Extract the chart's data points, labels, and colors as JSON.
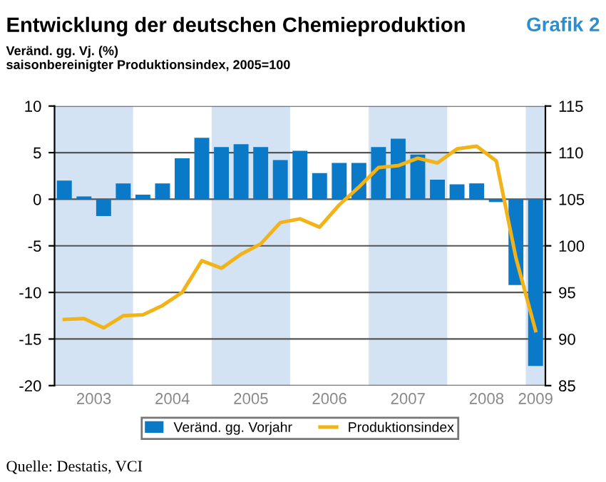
{
  "chart_data": {
    "type": "bar",
    "title": "Entwicklung der deutschen Chemieproduktion",
    "subtitle": "Veränd. gg. Vj. (%)\nsaisonbereinigter Produktionsindex, 2005=100",
    "annotations": [
      "Grafik 2",
      "Quelle: Destatis, VCI"
    ],
    "x": [
      2003.125,
      2003.375,
      2003.625,
      2003.875,
      2004.125,
      2004.375,
      2004.625,
      2004.875,
      2005.125,
      2005.375,
      2005.625,
      2005.875,
      2006.125,
      2006.375,
      2006.625,
      2006.875,
      2007.125,
      2007.375,
      2007.625,
      2007.875,
      2008.125,
      2008.375,
      2008.625,
      2008.875,
      2009.125
    ],
    "series": [
      {
        "name": "Veränd. gg. Vorjahr",
        "color": "#0a7ac8",
        "values": [
          2.0,
          0.3,
          -1.8,
          1.7,
          0.5,
          1.7,
          4.4,
          6.6,
          5.6,
          5.9,
          5.6,
          4.2,
          5.2,
          2.8,
          3.9,
          3.9,
          5.6,
          6.5,
          4.8,
          2.1,
          1.6,
          1.7,
          -0.3,
          -9.2,
          -17.9
        ]
      },
      {
        "name": "Produktionsindex",
        "type": "line",
        "axis": "y2",
        "color": "#f2b318",
        "values": [
          92.1,
          92.2,
          91.2,
          92.5,
          92.6,
          93.6,
          95.0,
          98.4,
          97.6,
          99.1,
          100.2,
          102.5,
          102.9,
          102.0,
          104.4,
          106.3,
          108.4,
          108.6,
          109.4,
          108.9,
          110.4,
          110.7,
          109.1,
          98.7,
          90.9
        ]
      }
    ],
    "xlim": [
      2003,
      2009.25
    ],
    "xticks": [
      {
        "value": 2003.5,
        "label": "2003"
      },
      {
        "value": 2004.5,
        "label": "2004"
      },
      {
        "value": 2005.5,
        "label": "2005"
      },
      {
        "value": 2006.5,
        "label": "2006"
      },
      {
        "value": 2007.5,
        "label": "2007"
      },
      {
        "value": 2008.5,
        "label": "2008"
      },
      {
        "value": 2009.125,
        "label": "2009"
      }
    ],
    "ylim": [
      -20,
      10
    ],
    "yticks": [
      -20,
      -15,
      -10,
      -5,
      0,
      5,
      10
    ],
    "y2lim": [
      85,
      115
    ],
    "y2ticks": [
      85,
      90,
      95,
      100,
      105,
      110,
      115
    ],
    "bands": [
      {
        "axis": "x",
        "from": 2003,
        "to": 2004,
        "color": "#d3e3f3"
      },
      {
        "axis": "x",
        "from": 2005,
        "to": 2006,
        "color": "#d3e3f3"
      },
      {
        "axis": "x",
        "from": 2007,
        "to": 2008,
        "color": "#d3e3f3"
      },
      {
        "axis": "x",
        "from": 2009,
        "to": 2009.25,
        "color": "#d3e3f3"
      }
    ],
    "grid": "y",
    "legend": "bottom",
    "line_style": "solid",
    "marker": "none"
  }
}
